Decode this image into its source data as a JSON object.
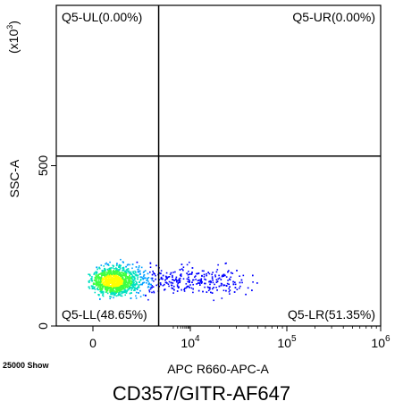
{
  "chart_data": {
    "type": "scatter",
    "subtype": "flow-cytometry-density-dot-plot",
    "title": "CD357/GITR-AF647",
    "xlabel": "APC R660-APC-A",
    "ylabel": "SSC-A",
    "y_scale_label": "(x10",
    "y_scale_exp": "3",
    "y_scale_close": ")",
    "x_scale": "biexponential",
    "xlim": [
      -300,
      1000000
    ],
    "ylim": [
      0,
      1000
    ],
    "x_ticks": [
      {
        "base": "0",
        "exp": "",
        "value": 0
      },
      {
        "base": "10",
        "exp": "4",
        "value": 10000
      },
      {
        "base": "10",
        "exp": "5",
        "value": 100000
      },
      {
        "base": "10",
        "exp": "6",
        "value": 1000000
      }
    ],
    "y_ticks": [
      {
        "label": "0",
        "value": 0
      },
      {
        "label": "500",
        "value": 500
      }
    ],
    "event_count_text": "25000 Show",
    "gate": {
      "x_value": 500,
      "y_value": 530
    },
    "quadrants": [
      {
        "label": "Q5-UL(0.00%)",
        "position": "top-left",
        "percent": 0.0
      },
      {
        "label": "Q5-UR(0.00%)",
        "position": "top-right",
        "percent": 0.0
      },
      {
        "label": "Q5-LL(48.65%)",
        "position": "bottom-left",
        "percent": 48.65
      },
      {
        "label": "Q5-LR(51.35%)",
        "position": "bottom-right",
        "percent": 51.35
      }
    ],
    "population": {
      "events": 25000,
      "x_center": 450,
      "y_center": 135,
      "y_range": [
        20,
        270
      ],
      "colors": [
        "#0000ff",
        "#00a0ff",
        "#00e0c0",
        "#40ff40",
        "#ffff00"
      ]
    },
    "grid": false,
    "legend": "none"
  }
}
